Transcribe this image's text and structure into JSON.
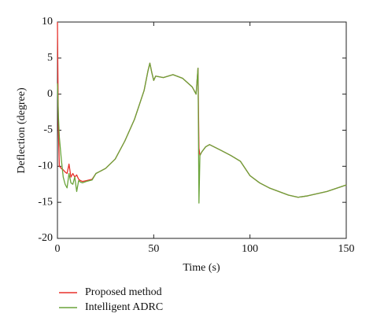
{
  "chart_data": {
    "type": "line",
    "xlabel": "Time (s)",
    "ylabel": "Deflection (degree)",
    "x": [
      0,
      0.5,
      1,
      2,
      3,
      4,
      5,
      6,
      7,
      8,
      9,
      10,
      11,
      12,
      13,
      15,
      18,
      20,
      25,
      30,
      35,
      40,
      45,
      47,
      48,
      49,
      50,
      51,
      55,
      60,
      65,
      70,
      72,
      73,
      73.5,
      74,
      75,
      77,
      79,
      85,
      90,
      95,
      100,
      105,
      110,
      120,
      125,
      130,
      140,
      150
    ],
    "series": [
      {
        "name": "Proposed method",
        "color": "#e8302a",
        "values": [
          10,
          -5,
          -10,
          -10.3,
          -10.5,
          -10.8,
          -11,
          -9.7,
          -11.5,
          -11,
          -11.5,
          -11.2,
          -11.8,
          -12,
          -12.1,
          -12,
          -11.8,
          -11,
          -10.3,
          -9,
          -6.5,
          -3.5,
          0.5,
          3.2,
          4.3,
          3,
          1.9,
          2.5,
          2.3,
          2.7,
          2.2,
          1,
          0,
          3.6,
          -7.5,
          -8.5,
          -8,
          -7.3,
          -7,
          -7.8,
          -8.5,
          -9.3,
          -11.3,
          -12.3,
          -13,
          -14,
          -14.3,
          -14.1,
          -13.5,
          -12.6
        ]
      },
      {
        "name": "Intelligent ADRC",
        "color": "#6aa43a",
        "values": [
          1.5,
          -3,
          -6,
          -9,
          -11.5,
          -12.5,
          -13,
          -11,
          -12.3,
          -12.5,
          -11.5,
          -13.5,
          -12,
          -12.2,
          -12.3,
          -12.1,
          -11.9,
          -11,
          -10.3,
          -9,
          -6.5,
          -3.5,
          0.5,
          3.2,
          4.3,
          3,
          1.9,
          2.5,
          2.3,
          2.7,
          2.2,
          1,
          0,
          3.6,
          -15.1,
          -8.5,
          -8,
          -7.3,
          -7,
          -7.8,
          -8.5,
          -9.3,
          -11.3,
          -12.3,
          -13,
          -14,
          -14.3,
          -14.1,
          -13.5,
          -12.6
        ]
      }
    ],
    "xlim": [
      0,
      150
    ],
    "xticks": [
      0,
      50,
      100,
      150
    ],
    "ylim": [
      -20,
      10
    ],
    "yticks": [
      -20,
      -15,
      -10,
      -5,
      0,
      5,
      10
    ],
    "grid": false,
    "legend": "bottom-left"
  }
}
